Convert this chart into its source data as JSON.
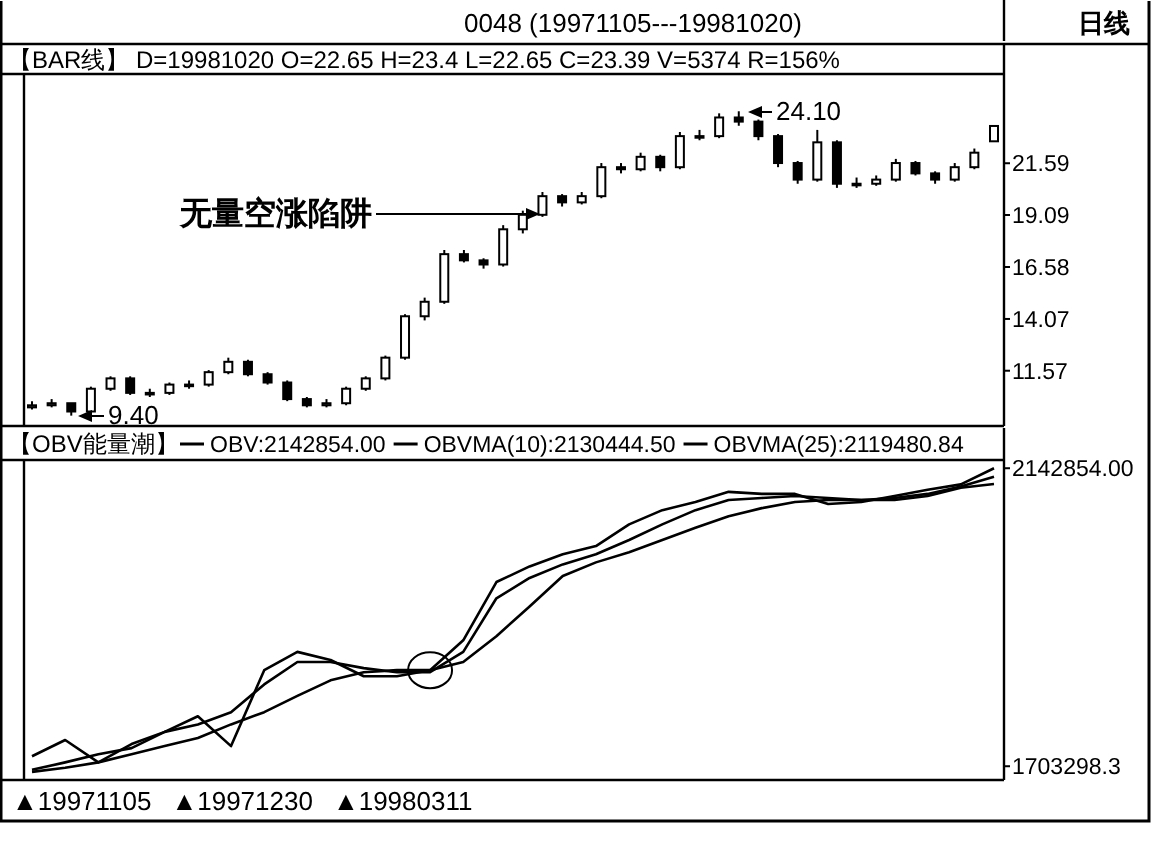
{
  "chart_data": [
    {
      "type": "candlestick",
      "title": "【BAR线】 D=19981020 O=22.65 H=23.4 L=22.65 C=23.39 V=5374 R=156%",
      "categories": [
        null,
        null,
        null,
        null,
        null,
        null,
        null,
        null,
        null,
        null,
        null,
        null,
        null,
        null,
        null,
        null,
        null,
        null,
        null,
        null,
        null,
        null,
        null,
        null,
        null,
        null,
        null,
        null,
        null,
        null,
        null,
        null,
        null,
        null,
        null,
        null,
        null,
        null,
        null,
        null,
        null,
        null,
        null,
        null,
        null,
        null,
        null,
        null,
        null,
        null
      ],
      "ohlc": [
        [
          9.8,
          10.1,
          9.7,
          9.9
        ],
        [
          9.9,
          10.2,
          9.8,
          10.0
        ],
        [
          10.0,
          10.0,
          9.4,
          9.6
        ],
        [
          9.6,
          10.8,
          9.5,
          10.7
        ],
        [
          10.7,
          11.3,
          10.6,
          11.2
        ],
        [
          11.2,
          11.3,
          10.4,
          10.5
        ],
        [
          10.5,
          10.7,
          10.3,
          10.5
        ],
        [
          10.5,
          11.0,
          10.4,
          10.9
        ],
        [
          10.9,
          11.1,
          10.7,
          10.9
        ],
        [
          10.9,
          11.6,
          10.8,
          11.5
        ],
        [
          11.5,
          12.2,
          11.4,
          12.0
        ],
        [
          12.0,
          12.1,
          11.3,
          11.4
        ],
        [
          11.4,
          11.5,
          10.9,
          11.0
        ],
        [
          11.0,
          11.1,
          10.1,
          10.2
        ],
        [
          10.2,
          10.3,
          9.8,
          9.9
        ],
        [
          9.9,
          10.2,
          9.8,
          10.0
        ],
        [
          10.0,
          10.8,
          9.9,
          10.7
        ],
        [
          10.7,
          11.3,
          10.6,
          11.2
        ],
        [
          11.2,
          12.3,
          11.1,
          12.2
        ],
        [
          12.2,
          14.3,
          12.1,
          14.2
        ],
        [
          14.2,
          15.1,
          14.0,
          14.9
        ],
        [
          14.9,
          17.4,
          14.8,
          17.2
        ],
        [
          17.2,
          17.4,
          16.8,
          16.9
        ],
        [
          16.9,
          17.0,
          16.5,
          16.7
        ],
        [
          16.7,
          18.6,
          16.6,
          18.4
        ],
        [
          18.4,
          19.3,
          18.2,
          19.1
        ],
        [
          19.1,
          20.2,
          19.0,
          20.0
        ],
        [
          20.0,
          20.1,
          19.5,
          19.7
        ],
        [
          19.7,
          20.2,
          19.6,
          20.0
        ],
        [
          20.0,
          21.6,
          19.9,
          21.4
        ],
        [
          21.4,
          21.6,
          21.1,
          21.3
        ],
        [
          21.3,
          22.1,
          21.2,
          21.9
        ],
        [
          21.9,
          22.0,
          21.2,
          21.4
        ],
        [
          21.4,
          23.1,
          21.3,
          22.9
        ],
        [
          22.9,
          23.2,
          22.7,
          22.9
        ],
        [
          22.9,
          24.0,
          22.8,
          23.8
        ],
        [
          23.8,
          24.1,
          23.4,
          23.6
        ],
        [
          23.6,
          23.7,
          22.7,
          22.9
        ],
        [
          22.9,
          23.0,
          21.4,
          21.6
        ],
        [
          21.6,
          21.7,
          20.6,
          20.8
        ],
        [
          20.8,
          23.2,
          20.7,
          22.6
        ],
        [
          22.6,
          22.7,
          20.4,
          20.6
        ],
        [
          20.6,
          20.9,
          20.4,
          20.6
        ],
        [
          20.6,
          21.0,
          20.5,
          20.8
        ],
        [
          20.8,
          21.8,
          20.7,
          21.6
        ],
        [
          21.6,
          21.7,
          21.0,
          21.1
        ],
        [
          21.1,
          21.2,
          20.6,
          20.8
        ],
        [
          20.8,
          21.6,
          20.7,
          21.4
        ],
        [
          21.4,
          22.3,
          21.3,
          22.1
        ],
        [
          22.65,
          23.4,
          22.65,
          23.39
        ]
      ],
      "color": "#000000",
      "ylim": [
        8.9,
        25.9
      ],
      "yticks": [
        11.57,
        14.07,
        16.58,
        19.09,
        21.59
      ],
      "annotations": [
        "0048    (19971105---19981020)",
        "日线",
        "9.40",
        "无量空涨陷阱",
        "24.10"
      ]
    },
    {
      "type": "line",
      "title": "【OBV能量潮】",
      "categories": [
        null,
        null,
        null,
        null,
        null,
        null,
        null,
        null,
        null,
        null,
        null,
        null,
        null,
        null,
        null,
        null,
        null,
        null,
        null,
        null,
        null,
        null,
        null,
        null,
        null,
        null,
        null,
        null,
        null,
        null
      ],
      "series": [
        {
          "name": "OBV:2142854.00",
          "color": "#000000",
          "values": [
            1718000,
            1742000,
            1709000,
            1736000,
            1754000,
            1777000,
            1733000,
            1845000,
            1872000,
            1860000,
            1836000,
            1836000,
            1845000,
            1889000,
            1975000,
            1998000,
            2016000,
            2028000,
            2060000,
            2081000,
            2093000,
            2108000,
            2105000,
            2105000,
            2090000,
            2093000,
            2102000,
            2111000,
            2119000,
            2142854
          ]
        },
        {
          "name": "OBVMA(10):2130444.50",
          "color": "#000000",
          "values": [
            1698000,
            1709000,
            1721000,
            1730000,
            1754000,
            1765000,
            1783000,
            1824000,
            1857000,
            1857000,
            1848000,
            1842000,
            1842000,
            1872000,
            1951000,
            1981000,
            2001000,
            2016000,
            2037000,
            2060000,
            2081000,
            2096000,
            2099000,
            2102000,
            2099000,
            2096000,
            2099000,
            2105000,
            2116000,
            2130444.5
          ]
        },
        {
          "name": "OBVMA(25):2119480.84",
          "color": "#000000",
          "values": [
            1695000,
            1701000,
            1709000,
            1721000,
            1733000,
            1745000,
            1765000,
            1783000,
            1807000,
            1830000,
            1842000,
            1845000,
            1845000,
            1857000,
            1895000,
            1939000,
            1984000,
            2004000,
            2019000,
            2037000,
            2055000,
            2072000,
            2084000,
            2093000,
            2096000,
            2096000,
            2096000,
            2102000,
            2114000,
            2119480.84
          ]
        }
      ],
      "ylim": [
        1683000,
        2155000
      ],
      "yticks": [
        {
          "value": 2142854,
          "label": "2142854.00"
        },
        {
          "value": 1703298.3,
          "label": "1703298.3"
        }
      ],
      "legend": "top",
      "annotations": [
        "▲19971105",
        "▲19971230",
        "▲19980311"
      ]
    }
  ]
}
